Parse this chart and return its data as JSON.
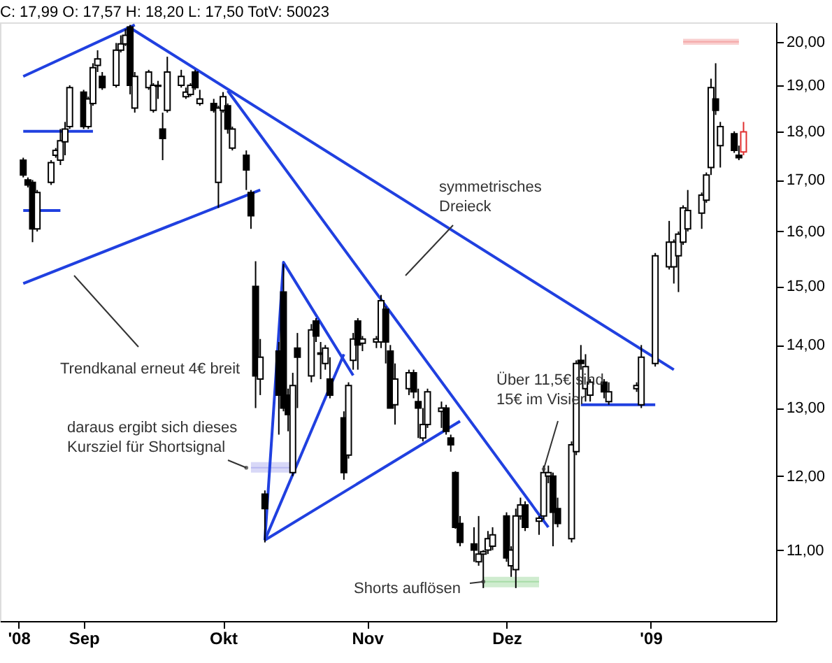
{
  "chart_data": {
    "type": "candlestick",
    "title": "C: 17,99 O: 17,57 H: 18,20 L: 17,50 TotV: 50023",
    "xlim": [
      "2008-08-14",
      "2009-01-28"
    ],
    "xticks": [
      {
        "value": "2008-08-18",
        "label": "'08"
      },
      {
        "value": "2008-09-01",
        "label": "Sep"
      },
      {
        "value": "2008-10-01",
        "label": "Okt"
      },
      {
        "value": "2008-11-01",
        "label": "Nov"
      },
      {
        "value": "2008-12-01",
        "label": "Dez"
      },
      {
        "value": "2009-01-01",
        "label": "'09"
      }
    ],
    "ylim": [
      10.12,
      20.46
    ],
    "log": true,
    "yticks": [
      {
        "value": 11,
        "label": "11,00"
      },
      {
        "value": 12,
        "label": "12,00"
      },
      {
        "value": 13,
        "label": "13,00"
      },
      {
        "value": 14,
        "label": "14,00"
      },
      {
        "value": 15,
        "label": "15,00"
      },
      {
        "value": 16,
        "label": "16,00"
      },
      {
        "value": 17,
        "label": "17,00"
      },
      {
        "value": 18,
        "label": "18,00"
      },
      {
        "value": 19,
        "label": "19,00"
      },
      {
        "value": 20,
        "label": "20,00"
      }
    ],
    "grid": false,
    "annotations": [
      "symmetrisches\nDreieck",
      "Trendkanal erneut 4€ breit",
      {
        "text": "daraus ergibt sich dieses\nKursziel für Shortsignal",
        "x": "2008-10-06",
        "y": 12.12
      },
      {
        "text": "Über 11,5€ sind\n15€ im Visier",
        "x": "2008-12-09",
        "y": 12.1
      },
      {
        "text": "Shorts auflösen",
        "x": "2008-11-26",
        "y": 10.6
      }
    ],
    "series": [
      {
        "type": "line",
        "color": "#b8b8f0",
        "x": [
          "2008-10-07",
          "2008-10-16"
        ],
        "values": [
          12.12,
          12.12
        ],
        "lower": [
          12.05,
          12.05
        ],
        "upper": [
          12.2,
          12.2
        ]
      },
      {
        "type": "line",
        "color": "#a8dca8",
        "x": [
          "2008-11-26",
          "2008-12-08"
        ],
        "values": [
          10.6,
          10.6
        ],
        "lower": [
          10.53,
          10.53
        ],
        "upper": [
          10.66,
          10.66
        ]
      },
      {
        "type": "line",
        "color": "#f4a8a8",
        "x": [
          "2009-01-08",
          "2009-01-20"
        ],
        "values": [
          20.0,
          20.0
        ],
        "lower": [
          19.93,
          19.93
        ],
        "upper": [
          20.07,
          20.07
        ]
      },
      {
        "type": "line",
        "color": "#2040e0",
        "x": [
          "2008-08-19",
          "2008-09-12"
        ],
        "values": [
          19.2,
          20.4
        ]
      },
      {
        "type": "line",
        "color": "#2040e0",
        "x": [
          "2008-08-19",
          "2008-10-09"
        ],
        "values": [
          15.05,
          16.8
        ]
      },
      {
        "type": "line",
        "color": "#2040e0",
        "x": [
          "2008-09-11",
          "2009-01-06"
        ],
        "values": [
          20.33,
          13.6
        ]
      },
      {
        "type": "line",
        "color": "#2040e0",
        "x": [
          "2008-10-02",
          "2008-12-10"
        ],
        "values": [
          18.88,
          11.3
        ]
      },
      {
        "type": "line",
        "color": "#2040e0",
        "x": [
          "2008-10-10",
          "2008-10-14",
          "2008-10-29"
        ],
        "values": [
          11.13,
          15.43,
          13.51
        ]
      },
      {
        "type": "line",
        "color": "#2040e0",
        "x": [
          "2008-10-10",
          "2008-10-27"
        ],
        "values": [
          11.13,
          13.85
        ]
      },
      {
        "type": "line",
        "color": "#2040e0",
        "x": [
          "2008-10-10",
          "2008-11-21"
        ],
        "values": [
          11.13,
          12.8
        ]
      },
      {
        "type": "line",
        "color": "#2040e0",
        "x": [
          "2008-08-19",
          "2008-09-03"
        ],
        "values": [
          18.0,
          18.0
        ]
      },
      {
        "type": "line",
        "color": "#2040e0",
        "x": [
          "2008-08-19",
          "2008-08-27"
        ],
        "values": [
          16.4,
          16.4
        ]
      },
      {
        "type": "line",
        "color": "#2040e0",
        "x": [
          "2008-12-17",
          "2009-01-02"
        ],
        "values": [
          13.05,
          13.05
        ]
      },
      {
        "type": "candlestick",
        "color": "#000000",
        "x": [
          "2008-08-19",
          "2008-08-20",
          "2008-08-21",
          "2008-08-22",
          "2008-08-25",
          "2008-08-26",
          "2008-08-27",
          "2008-08-28",
          "2008-08-29",
          "2008-09-01",
          "2008-09-02",
          "2008-09-03",
          "2008-09-04",
          "2008-09-05",
          "2008-09-08",
          "2008-09-09",
          "2008-09-10",
          "2008-09-11",
          "2008-09-12",
          "2008-09-15",
          "2008-09-16",
          "2008-09-17",
          "2008-09-18",
          "2008-09-19",
          "2008-09-22",
          "2008-09-23",
          "2008-09-24",
          "2008-09-25",
          "2008-09-26",
          "2008-09-29",
          "2008-09-30",
          "2008-10-01",
          "2008-10-02",
          "2008-10-03",
          "2008-10-06",
          "2008-10-07",
          "2008-10-08",
          "2008-10-09",
          "2008-10-10",
          "2008-10-13",
          "2008-10-14",
          "2008-10-15",
          "2008-10-16",
          "2008-10-17",
          "2008-10-20",
          "2008-10-21",
          "2008-10-22",
          "2008-10-23",
          "2008-10-24",
          "2008-10-27",
          "2008-10-28",
          "2008-10-29",
          "2008-10-30",
          "2008-10-31",
          "2008-11-03",
          "2008-11-04",
          "2008-11-05",
          "2008-11-06",
          "2008-11-07",
          "2008-11-10",
          "2008-11-11",
          "2008-11-12",
          "2008-11-13",
          "2008-11-14",
          "2008-11-17",
          "2008-11-18",
          "2008-11-19",
          "2008-11-20",
          "2008-11-21",
          "2008-11-24",
          "2008-11-25",
          "2008-11-26",
          "2008-11-27",
          "2008-11-28",
          "2008-12-01",
          "2008-12-02",
          "2008-12-03",
          "2008-12-04",
          "2008-12-05",
          "2008-12-08",
          "2008-12-09",
          "2008-12-10",
          "2008-12-11",
          "2008-12-12",
          "2008-12-15",
          "2008-12-16",
          "2008-12-17",
          "2008-12-18",
          "2008-12-19",
          "2008-12-22",
          "2008-12-23",
          "2008-12-29",
          "2008-12-30",
          "2009-01-02",
          "2009-01-05",
          "2009-01-06",
          "2009-01-07",
          "2009-01-08",
          "2009-01-09",
          "2009-01-12",
          "2009-01-13",
          "2009-01-14",
          "2009-01-15",
          "2009-01-16",
          "2009-01-19",
          "2009-01-20"
        ],
        "ohlc": [
          [
            17.4,
            17.45,
            17.05,
            17.1
          ],
          [
            17.0,
            17.05,
            16.85,
            16.9
          ],
          [
            16.95,
            17.0,
            15.8,
            16.05
          ],
          [
            16.05,
            16.8,
            16.0,
            16.75
          ],
          [
            16.95,
            17.4,
            16.9,
            17.35
          ],
          [
            17.5,
            17.65,
            17.45,
            17.6
          ],
          [
            17.4,
            18.05,
            17.3,
            17.8
          ],
          [
            17.78,
            18.2,
            17.5,
            18.05
          ],
          [
            18.1,
            19.0,
            18.05,
            18.95
          ],
          [
            18.85,
            18.9,
            18.05,
            18.1
          ],
          [
            18.1,
            18.75,
            18.05,
            18.7
          ],
          [
            18.6,
            19.5,
            18.55,
            19.4
          ],
          [
            19.45,
            19.8,
            19.3,
            19.6
          ],
          [
            19.2,
            19.3,
            18.9,
            18.95
          ],
          [
            19.0,
            19.97,
            18.95,
            19.8
          ],
          [
            19.8,
            20.15,
            19.75,
            19.95
          ],
          [
            19.95,
            20.3,
            19.9,
            20.15
          ],
          [
            20.35,
            20.4,
            18.8,
            19.0
          ],
          [
            18.5,
            19.3,
            18.4,
            19.2
          ],
          [
            18.95,
            19.35,
            18.9,
            19.3
          ],
          [
            18.45,
            19.05,
            18.4,
            19.0
          ],
          [
            19.0,
            19.1,
            18.7,
            18.98
          ],
          [
            18.05,
            18.4,
            17.4,
            17.85
          ],
          [
            18.45,
            19.65,
            18.4,
            19.3
          ],
          [
            19.0,
            19.35,
            18.95,
            19.2
          ],
          [
            18.75,
            18.95,
            18.7,
            18.85
          ],
          [
            18.8,
            19.05,
            18.75,
            19.0
          ],
          [
            19.3,
            19.35,
            18.9,
            18.95
          ],
          [
            18.6,
            18.9,
            18.55,
            18.7
          ],
          [
            18.6,
            18.7,
            18.4,
            18.45
          ],
          [
            16.95,
            18.55,
            16.45,
            18.5
          ],
          [
            18.45,
            18.85,
            18.4,
            18.75
          ],
          [
            18.55,
            18.6,
            17.95,
            18.05
          ],
          [
            17.65,
            18.1,
            17.6,
            18.05
          ],
          [
            17.5,
            17.6,
            16.8,
            17.2
          ],
          [
            16.75,
            16.8,
            16.05,
            16.3
          ],
          [
            15.0,
            15.45,
            13.0,
            13.5
          ],
          [
            13.45,
            14.1,
            13.2,
            13.8
          ],
          [
            11.75,
            11.8,
            11.1,
            11.55
          ],
          [
            13.9,
            14.05,
            12.6,
            13.2
          ],
          [
            14.9,
            15.4,
            12.95,
            13.0
          ],
          [
            13.2,
            13.3,
            12.65,
            12.9
          ],
          [
            12.05,
            13.55,
            12.0,
            13.35
          ],
          [
            13.95,
            14.2,
            13.0,
            13.8
          ],
          [
            13.5,
            14.35,
            13.4,
            14.25
          ],
          [
            14.4,
            14.45,
            14.05,
            14.15
          ],
          [
            13.85,
            14.05,
            13.45,
            13.87
          ],
          [
            13.7,
            14.0,
            13.6,
            13.95
          ],
          [
            13.45,
            13.8,
            13.15,
            13.2
          ],
          [
            12.85,
            12.95,
            11.95,
            12.05
          ],
          [
            12.3,
            13.4,
            12.25,
            13.35
          ],
          [
            13.75,
            14.2,
            13.6,
            14.1
          ],
          [
            14.4,
            14.45,
            13.6,
            14.0
          ],
          [
            14.03,
            14.15,
            13.9,
            14.1
          ],
          [
            14.05,
            14.15,
            13.95,
            14.1
          ],
          [
            14.05,
            14.85,
            13.95,
            14.75
          ],
          [
            14.6,
            14.65,
            13.7,
            14.05
          ],
          [
            13.9,
            14.0,
            13.0,
            13.0
          ],
          [
            13.05,
            13.7,
            12.75,
            13.45
          ],
          [
            13.3,
            13.6,
            13.2,
            13.55
          ],
          [
            13.55,
            13.6,
            13.15,
            13.25
          ],
          [
            13.1,
            13.3,
            12.55,
            13.0
          ],
          [
            12.55,
            13.0,
            12.5,
            12.75
          ],
          [
            12.75,
            13.3,
            12.7,
            13.25
          ],
          [
            12.95,
            13.1,
            12.7,
            13.0
          ],
          [
            13.0,
            13.05,
            12.6,
            12.65
          ],
          [
            12.55,
            12.6,
            12.35,
            12.45
          ],
          [
            12.05,
            12.07,
            11.28,
            11.3
          ],
          [
            11.35,
            11.45,
            11.05,
            11.1
          ],
          [
            11.08,
            11.3,
            10.85,
            11.0
          ],
          [
            10.85,
            11.45,
            10.8,
            10.95
          ],
          [
            10.95,
            11.0,
            10.52,
            10.98
          ],
          [
            11.0,
            11.25,
            10.95,
            11.15
          ],
          [
            11.05,
            11.3,
            11.0,
            11.2
          ],
          [
            11.45,
            11.5,
            10.85,
            10.9
          ],
          [
            10.8,
            11.05,
            10.66,
            11.0
          ],
          [
            10.75,
            11.55,
            10.52,
            11.45
          ],
          [
            11.45,
            11.7,
            11.4,
            11.6
          ],
          [
            11.6,
            11.65,
            11.25,
            11.3
          ],
          [
            11.38,
            11.45,
            11.2,
            11.42
          ],
          [
            11.45,
            12.15,
            11.4,
            12.05
          ],
          [
            12.0,
            12.15,
            11.9,
            12.05
          ],
          [
            12.0,
            12.05,
            11.05,
            11.5
          ],
          [
            11.55,
            11.7,
            11.3,
            11.35
          ],
          [
            11.15,
            12.5,
            11.1,
            12.45
          ],
          [
            12.35,
            13.75,
            12.3,
            13.7
          ],
          [
            13.75,
            14.0,
            13.6,
            13.7
          ],
          [
            13.3,
            13.85,
            13.1,
            13.65
          ],
          [
            13.2,
            13.45,
            13.1,
            13.4
          ],
          [
            13.4,
            13.45,
            13.15,
            13.25
          ],
          [
            13.1,
            13.4,
            13.05,
            13.25
          ],
          [
            13.3,
            13.4,
            13.25,
            13.35
          ],
          [
            13.05,
            14.0,
            13.0,
            13.8
          ],
          [
            13.7,
            15.6,
            13.65,
            15.55
          ],
          [
            15.35,
            16.2,
            15.3,
            15.8
          ],
          [
            15.35,
            15.85,
            15.05,
            15.8
          ],
          [
            15.55,
            16.0,
            14.9,
            15.95
          ],
          [
            15.8,
            16.5,
            15.75,
            16.45
          ],
          [
            16.05,
            16.8,
            16.0,
            16.4
          ],
          [
            16.35,
            16.75,
            16.05,
            16.7
          ],
          [
            16.6,
            17.15,
            16.55,
            17.1
          ],
          [
            17.25,
            19.15,
            17.1,
            18.95
          ],
          [
            18.7,
            19.5,
            18.35,
            18.45
          ],
          [
            17.7,
            18.2,
            17.25,
            18.1
          ],
          [
            17.95,
            18.0,
            17.55,
            17.6
          ],
          [
            17.5,
            17.7,
            17.4,
            17.45
          ]
        ]
      },
      {
        "type": "candlestick",
        "color": "#e03030",
        "x": [
          "2009-01-21"
        ],
        "ohlc": [
          [
            17.57,
            18.2,
            17.5,
            17.99
          ]
        ]
      }
    ]
  }
}
